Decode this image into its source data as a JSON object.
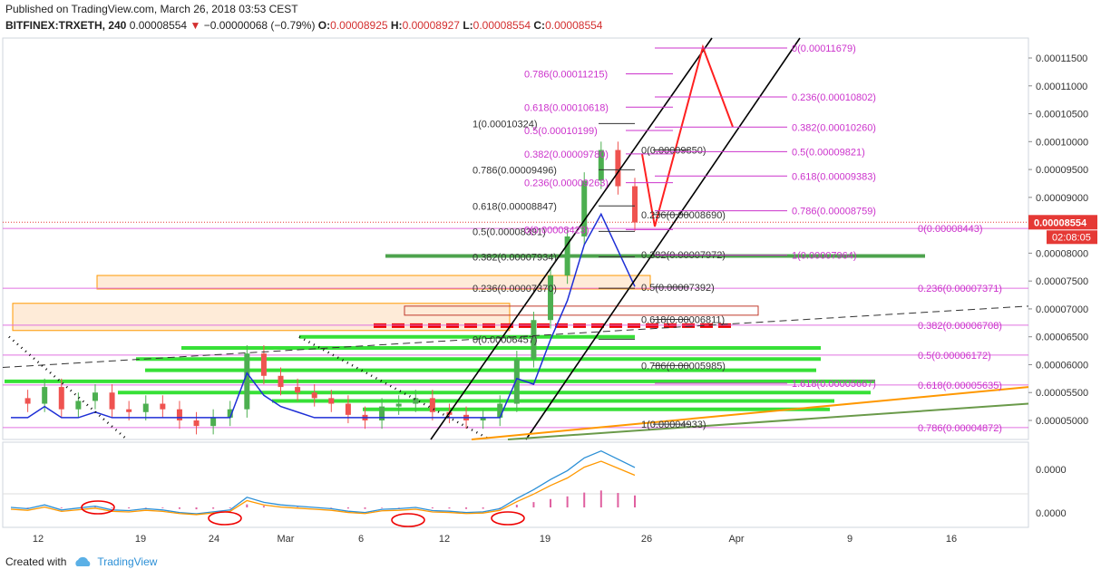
{
  "header": {
    "published": "Published on TradingView.com, March 26, 2018 03:53 CEST",
    "symbol": "BITFINEX:TRXETH, 240",
    "last": "0.00008554",
    "change_arrow": "▼",
    "change": "−0.00000068 (−0.79%)",
    "o_label": "O:",
    "o": "0.00008925",
    "h_label": "H:",
    "h": "0.00008927",
    "l_label": "L:",
    "l": "0.00008554",
    "c_label": "C:",
    "c": "0.00008554"
  },
  "footer": {
    "created_with": "Created with",
    "brand": "TradingView",
    "brand_icon": "cloud-icon"
  },
  "colors": {
    "up": "#4caf50",
    "down": "#ef5350",
    "fib": "#cc33cc",
    "green_zone": "#22dd22",
    "orange": "#ff9800",
    "blue": "#1e2fd6",
    "red_arrow": "#ff2020",
    "price_badge": "#e53935"
  },
  "chart_data": {
    "type": "candlestick",
    "price_axis": [
      "0.00011500",
      "0.00011000",
      "0.00010500",
      "0.00010000",
      "0.00009500",
      "0.00009000",
      "0.00008500",
      "0.00008000",
      "0.00007500",
      "0.00007000",
      "0.00006500",
      "0.00006000",
      "0.00005500",
      "0.00005000"
    ],
    "current_price": "0.00008554",
    "countdown": "02:08:05",
    "x_labels": [
      "12",
      "19",
      "24",
      "Mar",
      "6",
      "12",
      "19",
      "26",
      "Apr",
      "9",
      "16"
    ],
    "price_series": [
      5.4,
      5.3,
      5.6,
      5.2,
      5.35,
      5.5,
      5.2,
      5.15,
      5.3,
      5.2,
      5.0,
      4.9,
      5.05,
      5.2,
      6.2,
      5.8,
      5.6,
      5.5,
      5.4,
      5.3,
      5.1,
      5.0,
      5.25,
      5.3,
      5.4,
      5.15,
      5.1,
      5.0,
      5.05,
      5.3,
      6.1,
      6.8,
      7.6,
      8.3,
      9.3,
      9.85,
      9.2,
      8.55
    ],
    "fib_left": [
      {
        "label": "1(0.00010324)",
        "v": 10.324
      },
      {
        "label": "0.786(0.00009496)",
        "v": 9.496
      },
      {
        "label": "0.618(0.00008847)",
        "v": 8.847
      },
      {
        "label": "0.5(0.00008391)",
        "v": 8.391
      },
      {
        "label": "0.382(0.00007934)",
        "v": 7.934
      },
      {
        "label": "0.236(0.00007370)",
        "v": 7.37
      },
      {
        "label": "0(0.00006457)",
        "v": 6.457
      }
    ],
    "fib_ext_pink": [
      {
        "label": "0.786(0.00011215)",
        "v": 11.215
      },
      {
        "label": "0.618(0.00010618)",
        "v": 10.618
      },
      {
        "label": "0.5(0.00010199)",
        "v": 10.199
      },
      {
        "label": "0.382(0.00009780)",
        "v": 9.78
      },
      {
        "label": "0.236(0.00009263)",
        "v": 9.263
      },
      {
        "label": "0(0.00008423)",
        "v": 8.423
      }
    ],
    "fib_mid": [
      {
        "label": "0(0.00009850)",
        "v": 9.85
      },
      {
        "label": "0.236(0.00008690)",
        "v": 8.69
      },
      {
        "label": "0.382(0.00007972)",
        "v": 7.972
      },
      {
        "label": "0.5(0.00007392)",
        "v": 7.392
      },
      {
        "label": "0.618(0.00006811)",
        "v": 6.811
      },
      {
        "label": "0.786(0.00005985)",
        "v": 5.985
      },
      {
        "label": "1(0.00004933)",
        "v": 4.933
      }
    ],
    "fib_right": [
      {
        "label": "0(0.00011679)",
        "v": 11.679
      },
      {
        "label": "0.236(0.00010802)",
        "v": 10.802
      },
      {
        "label": "0.382(0.00010260)",
        "v": 10.26
      },
      {
        "label": "0.5(0.00009821)",
        "v": 9.821
      },
      {
        "label": "0.618(0.00009383)",
        "v": 9.383
      },
      {
        "label": "0.786(0.00008759)",
        "v": 8.759
      },
      {
        "label": "1(0.00007964)",
        "v": 7.964
      },
      {
        "label": "1.618(0.00005667)",
        "v": 5.667
      }
    ],
    "fib_far": [
      {
        "label": "0(0.00008443)",
        "v": 8.443
      },
      {
        "label": "0.236(0.00007371)",
        "v": 7.371
      },
      {
        "label": "0.382(0.00006708)",
        "v": 6.708
      },
      {
        "label": "0.5(0.00006172)",
        "v": 6.172
      },
      {
        "label": "0.618(0.00005635)",
        "v": 5.635
      },
      {
        "label": "0.786(0.00004872)",
        "v": 4.872
      }
    ],
    "oscillator_axis": [
      "0.0000",
      "0.0000"
    ]
  }
}
